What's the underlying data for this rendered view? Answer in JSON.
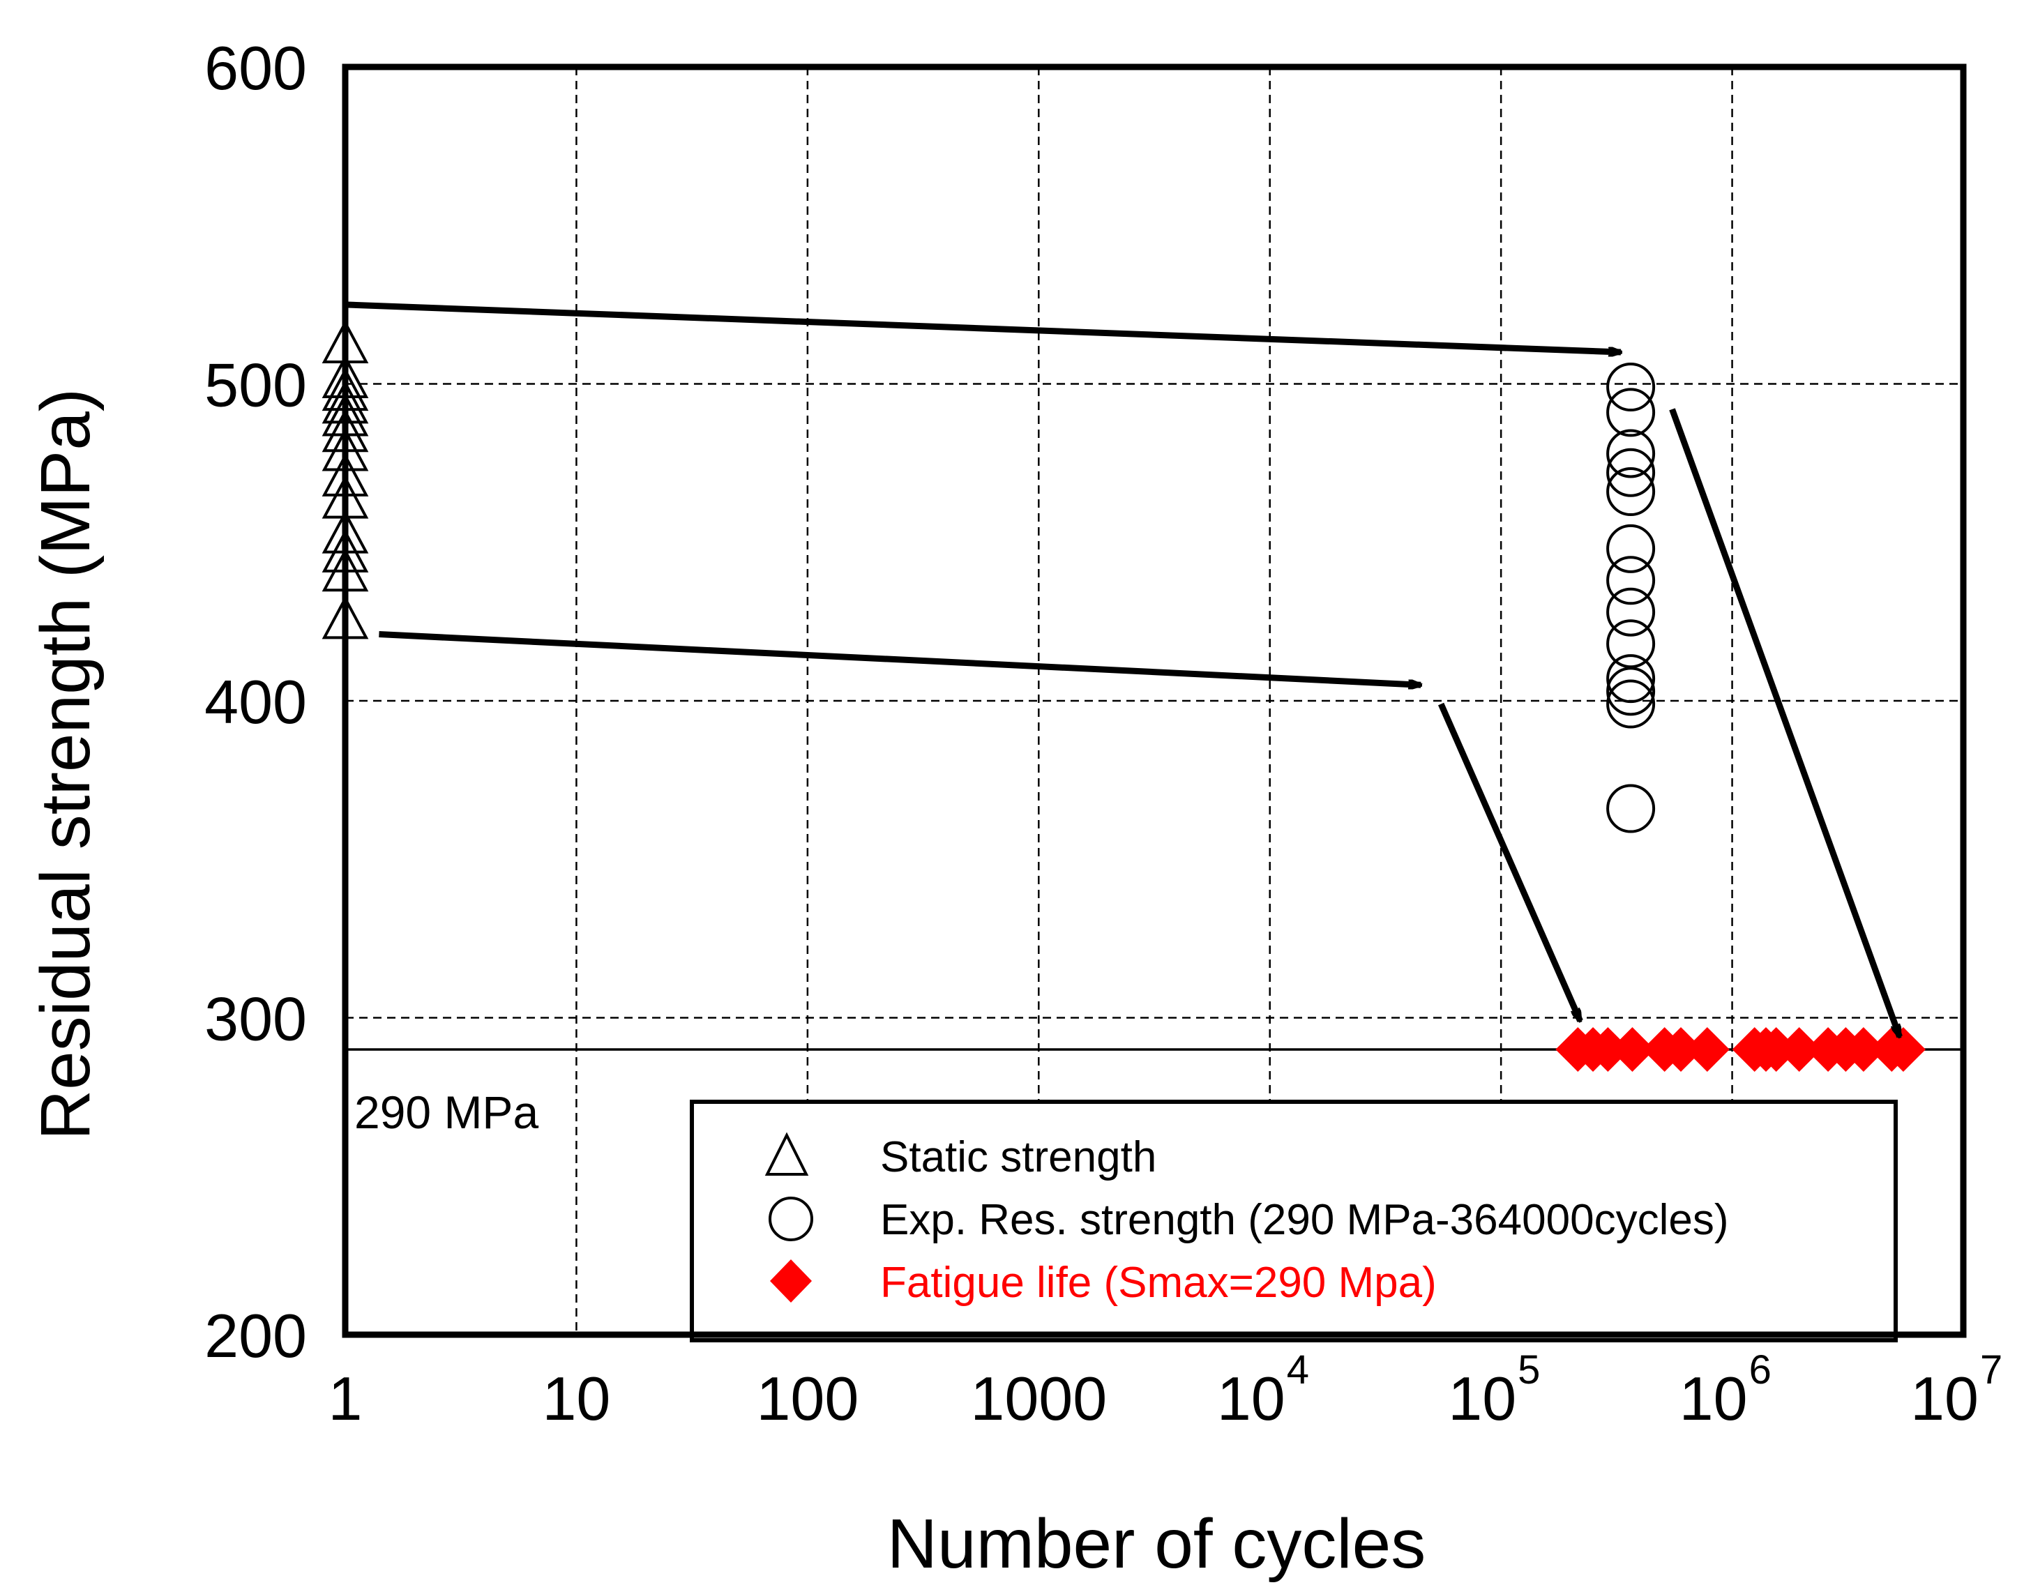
{
  "chart_data": {
    "type": "scatter",
    "xscale": "log",
    "xlim": [
      1,
      10000000
    ],
    "ylim": [
      200,
      600
    ],
    "xlabel": "Number of cycles",
    "ylabel": "Residual strength (MPa)",
    "grid": true,
    "y_ticks": [
      {
        "value": 200,
        "label": "200"
      },
      {
        "value": 300,
        "label": "300"
      },
      {
        "value": 400,
        "label": "400"
      },
      {
        "value": 500,
        "label": "500"
      },
      {
        "value": 600,
        "label": "600"
      }
    ],
    "x_ticks": [
      {
        "value": 1,
        "base": "1",
        "exp": ""
      },
      {
        "value": 10,
        "base": "10",
        "exp": ""
      },
      {
        "value": 100,
        "base": "100",
        "exp": ""
      },
      {
        "value": 1000,
        "base": "1000",
        "exp": ""
      },
      {
        "value": 10000,
        "base": "10",
        "exp": "4"
      },
      {
        "value": 100000,
        "base": "10",
        "exp": "5"
      },
      {
        "value": 1000000,
        "base": "10",
        "exp": "6"
      },
      {
        "value": 10000000,
        "base": "10",
        "exp": "7"
      }
    ],
    "reference_line": {
      "value": 290,
      "label": "290 MPa"
    },
    "series": [
      {
        "name": "Static strength",
        "marker": "triangle-open",
        "color": "#000000",
        "points": [
          {
            "x": 1,
            "y": 425
          },
          {
            "x": 1,
            "y": 440
          },
          {
            "x": 1,
            "y": 446
          },
          {
            "x": 1,
            "y": 452
          },
          {
            "x": 1,
            "y": 463
          },
          {
            "x": 1,
            "y": 470
          },
          {
            "x": 1,
            "y": 478
          },
          {
            "x": 1,
            "y": 484
          },
          {
            "x": 1,
            "y": 489
          },
          {
            "x": 1,
            "y": 493
          },
          {
            "x": 1,
            "y": 497
          },
          {
            "x": 1,
            "y": 501
          },
          {
            "x": 1,
            "y": 512
          }
        ]
      },
      {
        "name": "Exp. Res. strength (290 MPa-364000cycles)",
        "marker": "circle-open",
        "color": "#000000",
        "points": [
          {
            "x": 364000,
            "y": 366
          },
          {
            "x": 364000,
            "y": 399
          },
          {
            "x": 364000,
            "y": 403
          },
          {
            "x": 364000,
            "y": 407
          },
          {
            "x": 364000,
            "y": 418
          },
          {
            "x": 364000,
            "y": 428
          },
          {
            "x": 364000,
            "y": 438
          },
          {
            "x": 364000,
            "y": 448
          },
          {
            "x": 364000,
            "y": 466
          },
          {
            "x": 364000,
            "y": 472
          },
          {
            "x": 364000,
            "y": 478
          },
          {
            "x": 364000,
            "y": 491
          },
          {
            "x": 364000,
            "y": 499
          }
        ]
      },
      {
        "name": "Fatigue life (Smax=290 Mpa)",
        "marker": "diamond-filled",
        "color": "#ff0000",
        "points": [
          {
            "x": 215000,
            "y": 290
          },
          {
            "x": 250000,
            "y": 290
          },
          {
            "x": 290000,
            "y": 290
          },
          {
            "x": 370000,
            "y": 290
          },
          {
            "x": 510000,
            "y": 290
          },
          {
            "x": 600000,
            "y": 290
          },
          {
            "x": 780000,
            "y": 290
          },
          {
            "x": 1250000,
            "y": 290
          },
          {
            "x": 1400000,
            "y": 290
          },
          {
            "x": 1550000,
            "y": 290
          },
          {
            "x": 1950000,
            "y": 290
          },
          {
            "x": 2600000,
            "y": 290
          },
          {
            "x": 3100000,
            "y": 290
          },
          {
            "x": 3700000,
            "y": 290
          },
          {
            "x": 4900000,
            "y": 290
          },
          {
            "x": 5500000,
            "y": 290
          }
        ]
      }
    ],
    "annotations": [
      {
        "type": "arrow",
        "from": {
          "x": 1,
          "y": 525
        },
        "to": {
          "x": 330000,
          "y": 510
        }
      },
      {
        "type": "arrow",
        "from": {
          "x": 1.4,
          "y": 421
        },
        "to": {
          "x": 45000,
          "y": 405
        }
      },
      {
        "type": "arrow",
        "from": {
          "x": 55000,
          "y": 399
        },
        "to": {
          "x": 220000,
          "y": 299
        }
      },
      {
        "type": "arrow",
        "from": {
          "x": 550000,
          "y": 492
        },
        "to": {
          "x": 5300000,
          "y": 294
        }
      }
    ]
  }
}
